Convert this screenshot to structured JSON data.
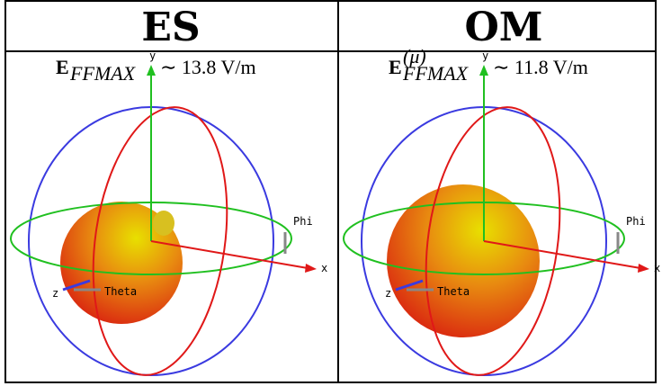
{
  "panels": [
    {
      "title": "ES",
      "field": {
        "symbol": "E",
        "subscript": "FFMAX",
        "value": "∼ 13.8 V/m"
      },
      "axes": {
        "x": "x",
        "y": "y",
        "z": "z",
        "phi": "Phi",
        "theta": "Theta"
      }
    },
    {
      "title": "OM",
      "field": {
        "symbol": "E",
        "superscript": "(μ)",
        "subscript": "FFMAX",
        "value": "∼ 11.8 V/m"
      },
      "axes": {
        "x": "x",
        "y": "y",
        "z": "z",
        "phi": "Phi",
        "theta": "Theta"
      }
    }
  ]
}
